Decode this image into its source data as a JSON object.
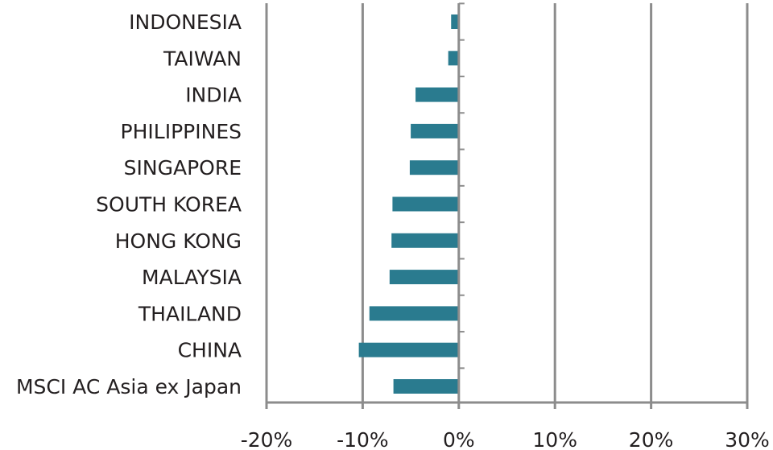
{
  "chart_data": {
    "type": "bar",
    "orientation": "horizontal",
    "categories": [
      "INDONESIA",
      "TAIWAN",
      "INDIA",
      "PHILIPPINES",
      "SINGAPORE",
      "SOUTH KOREA",
      "HONG KONG",
      "MALAYSIA",
      "THAILAND",
      "CHINA",
      "MSCI AC Asia ex Japan"
    ],
    "values": [
      -0.8,
      -1.1,
      -4.5,
      -5.0,
      -5.1,
      -6.9,
      -7.0,
      -7.2,
      -9.3,
      -10.4,
      -6.8
    ],
    "xlim": [
      -20,
      30
    ],
    "xticks": [
      {
        "value": -20,
        "label": "-20%"
      },
      {
        "value": -10,
        "label": "-10%"
      },
      {
        "value": 0,
        "label": "0%"
      },
      {
        "value": 10,
        "label": "10%"
      },
      {
        "value": 20,
        "label": "20%"
      },
      {
        "value": 30,
        "label": "30%"
      }
    ],
    "grid": "vertical",
    "title": "",
    "xlabel": "",
    "ylabel": "",
    "bar_color": "#2a7b8f",
    "grid_color": "#8c8c8c",
    "text_color": "#231f20"
  }
}
